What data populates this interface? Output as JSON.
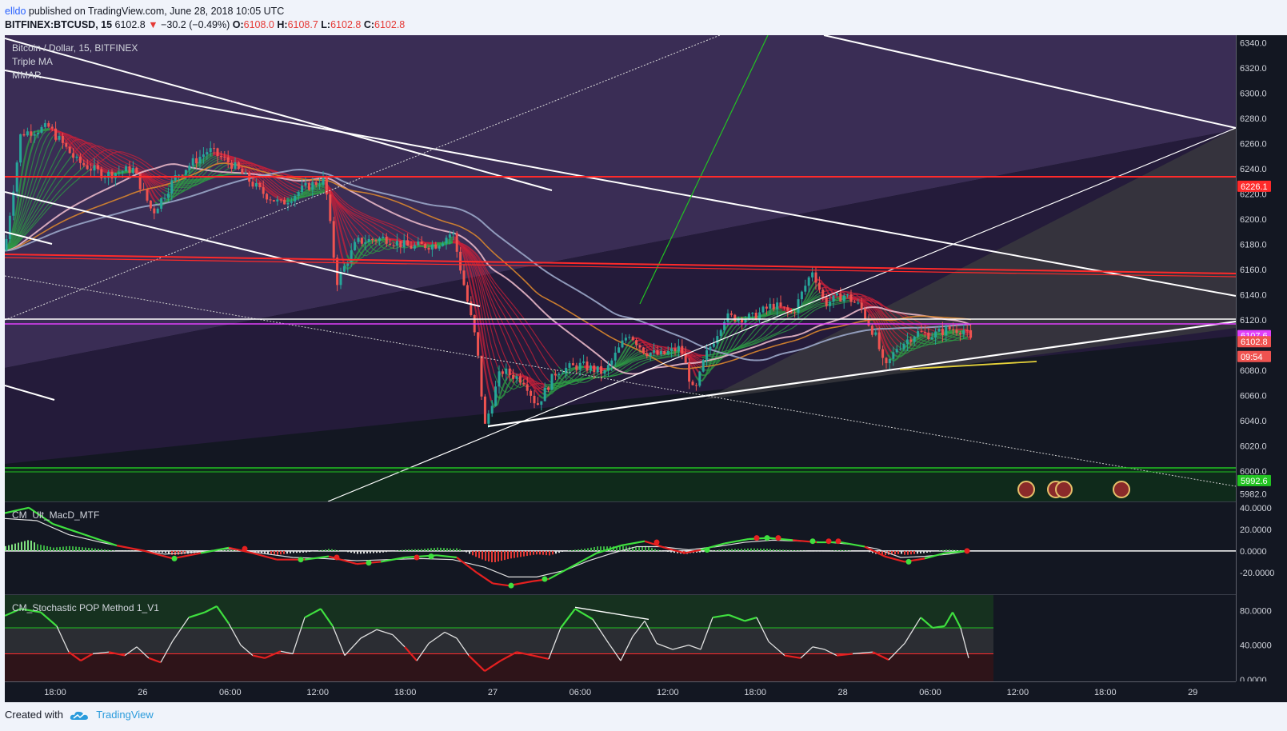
{
  "header": {
    "author": "elldo",
    "published": "published on TradingView.com, June 28, 2018 10:05 UTC"
  },
  "ohlc": {
    "symbol": "BITFINEX:BTCUSD, 15",
    "last": "6102.8",
    "change": "−30.2 (−0.49%)",
    "o_label": "O:",
    "o_val": "6108.0",
    "h_label": "H:",
    "h_val": "6108.7",
    "l_label": "L:",
    "l_val": "6102.8",
    "c_label": "C:",
    "c_val": "6102.8"
  },
  "legend": {
    "symbol": "Bitcoin / Dollar, 15, BITFINEX",
    "ind1": "Triple MA",
    "ind2": "MMAR",
    "macd": "CM_Ult_MacD_MTF",
    "stoch": "CM_Stochastic POP Method 1_V1"
  },
  "footer": {
    "created": "Created with",
    "brand": "TradingView"
  },
  "colors": {
    "bg_upper": "#3a2d55",
    "bg_lower": "#131722",
    "up": "#26a69a",
    "down": "#ef5350",
    "ribbon_green": "#2e9e44",
    "ribbon_red": "#c8203a",
    "line_white": "#ffffff",
    "level_red": "#ff2a2a",
    "level_green": "#22c322"
  },
  "chart_data": {
    "type": "line",
    "title": "Bitcoin / Dollar, 15, BITFINEX",
    "x_ticks": [
      "18:00",
      "26",
      "06:00",
      "12:00",
      "18:00",
      "27",
      "06:00",
      "12:00",
      "18:00",
      "28",
      "06:00",
      "12:00",
      "18:00",
      "29"
    ],
    "y_ticks": [
      6340,
      6320,
      6300,
      6280,
      6260,
      6240,
      6220,
      6200,
      6180,
      6160,
      6140,
      6120,
      6080,
      6060,
      6040,
      6020,
      6000,
      5982
    ],
    "y_tick_labels": [
      "6340.0",
      "6320.0",
      "6300.0",
      "6280.0",
      "6260.0",
      "6240.0",
      "6220.0",
      "6200.0",
      "6180.0",
      "6160.0",
      "6140.0",
      "6120.0",
      "6080.0",
      "6060.0",
      "6040.0",
      "6020.0",
      "6000.0",
      "5982.0"
    ],
    "ylim": [
      5976,
      6346
    ],
    "price_labels": [
      {
        "text": "6226.1",
        "value": 6226.1,
        "color": "#ff2a2a"
      },
      {
        "text": "6107.6",
        "value": 6107.6,
        "color": "#e040fb"
      },
      {
        "text": "6102.8",
        "value": 6102.8,
        "color": "#ef5350"
      },
      {
        "text": "09:54",
        "value": 6091.0,
        "color": "#ef5350"
      },
      {
        "text": "5992.6",
        "value": 5992.6,
        "color": "#22c322"
      }
    ],
    "price_series": [
      [
        0,
        6175
      ],
      [
        20,
        6268
      ],
      [
        55,
        6273
      ],
      [
        90,
        6246
      ],
      [
        125,
        6235
      ],
      [
        160,
        6240
      ],
      [
        185,
        6205
      ],
      [
        215,
        6235
      ],
      [
        255,
        6255
      ],
      [
        285,
        6243
      ],
      [
        320,
        6222
      ],
      [
        345,
        6212
      ],
      [
        375,
        6225
      ],
      [
        400,
        6232
      ],
      [
        415,
        6150
      ],
      [
        440,
        6182
      ],
      [
        475,
        6185
      ],
      [
        505,
        6178
      ],
      [
        540,
        6180
      ],
      [
        560,
        6190
      ],
      [
        575,
        6145
      ],
      [
        590,
        6100
      ],
      [
        600,
        6035
      ],
      [
        620,
        6080
      ],
      [
        650,
        6072
      ],
      [
        665,
        6052
      ],
      [
        690,
        6080
      ],
      [
        720,
        6084
      ],
      [
        750,
        6078
      ],
      [
        780,
        6110
      ],
      [
        800,
        6095
      ],
      [
        820,
        6092
      ],
      [
        845,
        6098
      ],
      [
        862,
        6060
      ],
      [
        875,
        6090
      ],
      [
        900,
        6122
      ],
      [
        935,
        6122
      ],
      [
        960,
        6132
      ],
      [
        985,
        6125
      ],
      [
        1010,
        6160
      ],
      [
        1025,
        6133
      ],
      [
        1050,
        6140
      ],
      [
        1070,
        6130
      ],
      [
        1090,
        6105
      ],
      [
        1100,
        6080
      ],
      [
        1115,
        6098
      ],
      [
        1140,
        6110
      ],
      [
        1160,
        6108
      ],
      [
        1180,
        6113
      ],
      [
        1200,
        6112
      ],
      [
        1208,
        6103
      ]
    ],
    "macd": {
      "name": "CM_Ult_MacD_MTF",
      "y_ticks": [
        "40.0000",
        "20.0000",
        "0.0000",
        "-20.0000"
      ],
      "ylim": [
        -40,
        45
      ],
      "macd_line": [
        [
          0,
          35
        ],
        [
          30,
          40
        ],
        [
          60,
          25
        ],
        [
          100,
          15
        ],
        [
          140,
          5
        ],
        [
          175,
          0
        ],
        [
          210,
          -7
        ],
        [
          245,
          -2
        ],
        [
          280,
          3
        ],
        [
          310,
          -2
        ],
        [
          340,
          -8
        ],
        [
          375,
          -8
        ],
        [
          405,
          -5
        ],
        [
          440,
          -12
        ],
        [
          470,
          -10
        ],
        [
          500,
          -6
        ],
        [
          540,
          -4
        ],
        [
          565,
          -6
        ],
        [
          590,
          -20
        ],
        [
          610,
          -30
        ],
        [
          630,
          -32
        ],
        [
          660,
          -28
        ],
        [
          680,
          -26
        ],
        [
          710,
          -14
        ],
        [
          740,
          -2
        ],
        [
          770,
          5
        ],
        [
          800,
          9
        ],
        [
          825,
          3
        ],
        [
          850,
          -2
        ],
        [
          870,
          1
        ],
        [
          900,
          7
        ],
        [
          930,
          11
        ],
        [
          955,
          12
        ],
        [
          985,
          10
        ],
        [
          1015,
          8
        ],
        [
          1045,
          8
        ],
        [
          1075,
          4
        ],
        [
          1100,
          -5
        ],
        [
          1125,
          -10
        ],
        [
          1150,
          -7
        ],
        [
          1175,
          -2
        ],
        [
          1205,
          0
        ]
      ],
      "signal_line": [
        [
          0,
          30
        ],
        [
          40,
          28
        ],
        [
          80,
          15
        ],
        [
          120,
          8
        ],
        [
          160,
          2
        ],
        [
          200,
          -3
        ],
        [
          240,
          -1
        ],
        [
          280,
          2
        ],
        [
          320,
          -2
        ],
        [
          360,
          -6
        ],
        [
          400,
          -7
        ],
        [
          440,
          -9
        ],
        [
          480,
          -8
        ],
        [
          520,
          -7
        ],
        [
          560,
          -8
        ],
        [
          600,
          -15
        ],
        [
          630,
          -24
        ],
        [
          665,
          -24
        ],
        [
          700,
          -18
        ],
        [
          730,
          -9
        ],
        [
          760,
          -2
        ],
        [
          790,
          4
        ],
        [
          820,
          4
        ],
        [
          855,
          1
        ],
        [
          890,
          4
        ],
        [
          925,
          8
        ],
        [
          960,
          10
        ],
        [
          995,
          9
        ],
        [
          1030,
          8
        ],
        [
          1060,
          6
        ],
        [
          1090,
          2
        ],
        [
          1120,
          -6
        ],
        [
          1150,
          -5
        ],
        [
          1180,
          -3
        ],
        [
          1205,
          0
        ]
      ],
      "dots": [
        {
          "x": 212,
          "y": -7,
          "c": "g"
        },
        {
          "x": 300,
          "y": 2,
          "c": "r"
        },
        {
          "x": 370,
          "y": -8,
          "c": "g"
        },
        {
          "x": 415,
          "y": -6,
          "c": "r"
        },
        {
          "x": 455,
          "y": -11,
          "c": "g"
        },
        {
          "x": 515,
          "y": -6,
          "c": "r"
        },
        {
          "x": 533,
          "y": -5,
          "c": "g"
        },
        {
          "x": 633,
          "y": -32,
          "c": "g"
        },
        {
          "x": 675,
          "y": -26,
          "c": "g"
        },
        {
          "x": 815,
          "y": 8,
          "c": "r"
        },
        {
          "x": 878,
          "y": 1,
          "c": "g"
        },
        {
          "x": 940,
          "y": 12,
          "c": "r"
        },
        {
          "x": 953,
          "y": 12,
          "c": "g"
        },
        {
          "x": 967,
          "y": 12,
          "c": "r"
        },
        {
          "x": 1010,
          "y": 9,
          "c": "g"
        },
        {
          "x": 1030,
          "y": 9,
          "c": "r"
        },
        {
          "x": 1042,
          "y": 9,
          "c": "r"
        },
        {
          "x": 1130,
          "y": -10,
          "c": "g"
        },
        {
          "x": 1203,
          "y": 0,
          "c": "r"
        }
      ]
    },
    "stochastic": {
      "name": "CM_Stochastic POP Method 1_V1",
      "y_ticks": [
        "80.0000",
        "40.0000",
        "0.0000"
      ],
      "ylim": [
        -2,
        98
      ],
      "upper_band": 60,
      "lower_band": 30,
      "line": [
        [
          0,
          74
        ],
        [
          20,
          82
        ],
        [
          45,
          78
        ],
        [
          65,
          62
        ],
        [
          80,
          32
        ],
        [
          95,
          22
        ],
        [
          110,
          30
        ],
        [
          130,
          32
        ],
        [
          150,
          28
        ],
        [
          165,
          38
        ],
        [
          180,
          25
        ],
        [
          195,
          20
        ],
        [
          210,
          45
        ],
        [
          230,
          72
        ],
        [
          250,
          78
        ],
        [
          265,
          85
        ],
        [
          280,
          65
        ],
        [
          295,
          40
        ],
        [
          310,
          28
        ],
        [
          325,
          25
        ],
        [
          345,
          33
        ],
        [
          360,
          30
        ],
        [
          375,
          72
        ],
        [
          395,
          82
        ],
        [
          410,
          62
        ],
        [
          425,
          28
        ],
        [
          445,
          48
        ],
        [
          465,
          58
        ],
        [
          485,
          52
        ],
        [
          500,
          38
        ],
        [
          515,
          22
        ],
        [
          530,
          42
        ],
        [
          550,
          55
        ],
        [
          565,
          48
        ],
        [
          580,
          28
        ],
        [
          600,
          10
        ],
        [
          620,
          22
        ],
        [
          640,
          32
        ],
        [
          660,
          28
        ],
        [
          680,
          24
        ],
        [
          695,
          60
        ],
        [
          713,
          82
        ],
        [
          735,
          70
        ],
        [
          755,
          42
        ],
        [
          770,
          22
        ],
        [
          785,
          50
        ],
        [
          800,
          68
        ],
        [
          815,
          42
        ],
        [
          835,
          35
        ],
        [
          855,
          40
        ],
        [
          870,
          35
        ],
        [
          885,
          72
        ],
        [
          905,
          75
        ],
        [
          925,
          68
        ],
        [
          940,
          72
        ],
        [
          955,
          44
        ],
        [
          975,
          28
        ],
        [
          995,
          25
        ],
        [
          1010,
          38
        ],
        [
          1025,
          35
        ],
        [
          1040,
          28
        ],
        [
          1060,
          30
        ],
        [
          1085,
          32
        ],
        [
          1105,
          23
        ],
        [
          1125,
          42
        ],
        [
          1145,
          72
        ],
        [
          1160,
          60
        ],
        [
          1175,
          62
        ],
        [
          1185,
          78
        ],
        [
          1195,
          60
        ],
        [
          1205,
          25
        ]
      ],
      "divergence": [
        [
          713,
          82
        ],
        [
          805,
          68
        ]
      ]
    }
  }
}
